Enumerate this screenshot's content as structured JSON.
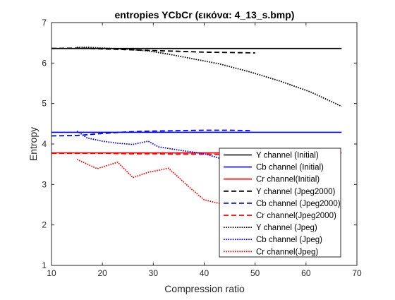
{
  "chart_data": {
    "type": "line",
    "title": "entropies YCbCr (εικόνα: 4_13_s.bmp)",
    "xlabel": "Compression ratio",
    "ylabel": "Entropy",
    "xlim": [
      10,
      70
    ],
    "ylim": [
      1,
      7
    ],
    "xticks": [
      "10",
      "20",
      "30",
      "40",
      "50",
      "60",
      "70"
    ],
    "yticks": [
      "1",
      "2",
      "3",
      "4",
      "5",
      "6",
      "7"
    ],
    "grid": false,
    "legend_position": "bottom-right",
    "series": [
      {
        "name": "Y channel (Initial)",
        "color": "#000000",
        "style": "solid",
        "x": [
          10,
          67
        ],
        "y": [
          6.36,
          6.36
        ]
      },
      {
        "name": "Cb channel (Initial)",
        "color": "#0000ff",
        "style": "solid",
        "x": [
          10,
          67
        ],
        "y": [
          4.29,
          4.29
        ]
      },
      {
        "name": "Cr channel(Initial)",
        "color": "#ff0000",
        "style": "solid",
        "x": [
          10,
          67
        ],
        "y": [
          3.78,
          3.78
        ]
      },
      {
        "name": "Y channel (Jpeg2000)",
        "color": "#000000",
        "style": "dashed",
        "x": [
          10,
          15,
          20,
          25,
          30,
          35,
          40,
          45,
          50
        ],
        "y": [
          6.36,
          6.37,
          6.35,
          6.33,
          6.31,
          6.29,
          6.27,
          6.26,
          6.25
        ]
      },
      {
        "name": "Cb channel (Jpeg2000)",
        "color": "#0000ff",
        "style": "dashed",
        "x": [
          10,
          15,
          20,
          25,
          30,
          35,
          40,
          45,
          49
        ],
        "y": [
          4.2,
          4.21,
          4.26,
          4.3,
          4.32,
          4.33,
          4.34,
          4.34,
          4.33
        ]
      },
      {
        "name": "Cr channel(Jpeg2000)",
        "color": "#ff0000",
        "style": "dashed",
        "x": [
          10,
          15,
          20,
          25,
          30,
          35,
          40,
          45,
          50
        ],
        "y": [
          3.77,
          3.77,
          3.77,
          3.76,
          3.76,
          3.75,
          3.75,
          3.74,
          3.74
        ]
      },
      {
        "name": "Y channel (Jpeg)",
        "color": "#000000",
        "style": "dotted",
        "x": [
          15,
          17,
          20,
          25,
          29,
          33,
          38,
          43,
          49,
          55,
          61,
          67
        ],
        "y": [
          6.39,
          6.39,
          6.37,
          6.34,
          6.3,
          6.22,
          6.1,
          5.98,
          5.78,
          5.55,
          5.28,
          4.93
        ]
      },
      {
        "name": "Cb channel (Jpeg)",
        "color": "#0000ff",
        "style": "dotted",
        "x": [
          15,
          17,
          20,
          23,
          26,
          29,
          31,
          35,
          40,
          43
        ],
        "y": [
          4.32,
          4.15,
          4.07,
          4.02,
          3.99,
          4.07,
          3.93,
          3.85,
          3.76,
          3.65
        ]
      },
      {
        "name": "Cr channel(Jpeg)",
        "color": "#ff0000",
        "style": "dotted",
        "x": [
          15,
          19,
          23,
          26,
          29,
          33,
          37,
          40,
          43
        ],
        "y": [
          3.62,
          3.39,
          3.55,
          3.17,
          3.3,
          3.4,
          2.94,
          2.62,
          2.53
        ]
      }
    ]
  }
}
